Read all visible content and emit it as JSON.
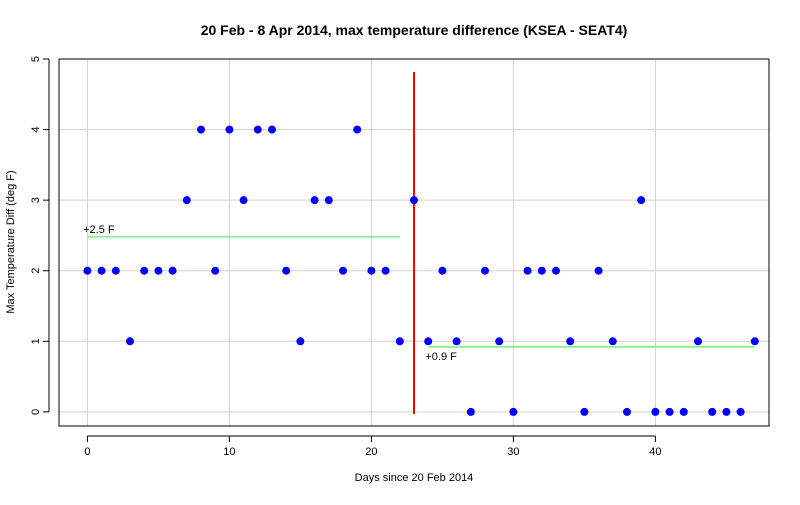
{
  "chart_data": {
    "type": "scatter",
    "title": "20 Feb - 8 Apr 2014, max temperature difference (KSEA - SEAT4)",
    "xlabel": "Days since 20 Feb 2014",
    "ylabel": "Max Temperature Diff (deg F)",
    "xlim": [
      -2,
      48
    ],
    "ylim": [
      -0.2,
      5
    ],
    "x_ticks": [
      0,
      10,
      20,
      30,
      40
    ],
    "y_ticks": [
      0,
      1,
      2,
      3,
      4,
      5
    ],
    "grid": true,
    "x": [
      0,
      1,
      2,
      3,
      4,
      5,
      6,
      7,
      8,
      9,
      10,
      11,
      12,
      13,
      14,
      15,
      16,
      17,
      18,
      19,
      20,
      21,
      22,
      23,
      24,
      25,
      26,
      27,
      28,
      29,
      30,
      31,
      32,
      33,
      34,
      35,
      36,
      37,
      38,
      39,
      40,
      41,
      42,
      43,
      44,
      45,
      46,
      47
    ],
    "y": [
      2,
      2,
      2,
      1,
      2,
      2,
      2,
      3,
      4,
      2,
      4,
      3,
      4,
      4,
      2,
      1,
      3,
      3,
      2,
      4,
      2,
      2,
      1,
      3,
      1,
      2,
      1,
      0,
      2,
      1,
      0,
      2,
      2,
      2,
      1,
      0,
      2,
      1,
      0,
      3,
      0,
      0,
      0,
      1,
      0,
      0,
      0,
      1
    ],
    "colors": {
      "points": "#0000ff",
      "vline": "#ff0000",
      "mean_line": "#66ee66",
      "grid": "#d3d3d3",
      "axis": "#000000"
    },
    "vertical_line": {
      "x": 23
    },
    "mean_segments": [
      {
        "x_start": 0,
        "x_end": 22,
        "y": 2.48,
        "label": "+2.5 F",
        "label_x": -0.3,
        "label_y": 2.48
      },
      {
        "x_start": 24,
        "x_end": 47,
        "y": 0.92,
        "label": "+0.9 F",
        "label_x": 23.8,
        "label_y": 0.92
      }
    ]
  }
}
